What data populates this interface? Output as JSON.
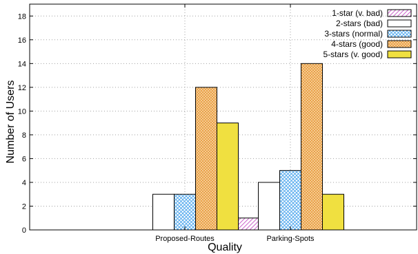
{
  "chart_data": {
    "type": "bar",
    "categories": [
      "Proposed-Routes",
      "Parking-Spots"
    ],
    "series": [
      {
        "name": "1-star (v. bad)",
        "values": [
          0,
          1
        ],
        "color": "#cc66cc",
        "pattern": "diagonal-hatch"
      },
      {
        "name": "2-stars (bad)",
        "values": [
          3,
          4
        ],
        "color": "#ffffff",
        "pattern": "solid"
      },
      {
        "name": "3-stars (normal)",
        "values": [
          3,
          5
        ],
        "color": "#55aaee",
        "pattern": "crosshatch"
      },
      {
        "name": "4-stars (good)",
        "values": [
          12,
          14
        ],
        "color": "#f0a040",
        "pattern": "crosshatch"
      },
      {
        "name": "5-stars (v. good)",
        "values": [
          9,
          3
        ],
        "color": "#f0e040",
        "pattern": "solid"
      }
    ],
    "title": "",
    "xlabel": "Quality",
    "ylabel": "Number of Users",
    "ylim": [
      0,
      19
    ],
    "yticks": [
      0,
      2,
      4,
      6,
      8,
      10,
      12,
      14,
      16,
      18
    ],
    "grid": true,
    "legend_position": "top-right"
  }
}
